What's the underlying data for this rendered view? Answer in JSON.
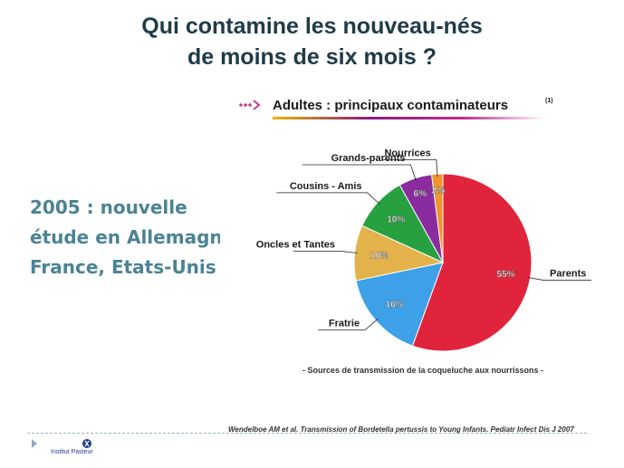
{
  "slide": {
    "title_line1": "Qui contamine les nouveau-nés",
    "title_line2": "de moins de six mois ?",
    "left_text": [
      "2005 : nouvelle",
      "étude en Allemagne",
      "France, Etats-Unis"
    ],
    "citation": "Wendelboe AM et al. Transmission of Bordetella pertussis to Young Infants. Pediatr Infect Dis J 2007",
    "logo_text": "Institut Pasteur",
    "logo_icon": "pasteur-logo-icon"
  },
  "colors": {
    "title": "#1f3b48",
    "left_text": "#4a8394",
    "slices": [
      "#e0243c",
      "#3da0e8",
      "#e3b24a",
      "#27a040",
      "#8a2ca0",
      "#f0942c"
    ]
  },
  "chart_data": {
    "type": "pie",
    "title": "Adultes : principaux contaminateurs",
    "title_note": "(1)",
    "caption": "- Sources de transmission de la coqueluche aux nourrissons -",
    "slices": [
      {
        "label": "Parents",
        "value": 55,
        "value_label": "55%"
      },
      {
        "label": "Fratrie",
        "value": 16,
        "value_label": "16%"
      },
      {
        "label": "Oncles et Tantes",
        "value": 10,
        "value_label": "10%"
      },
      {
        "label": "Cousins - Amis",
        "value": 10,
        "value_label": "10%"
      },
      {
        "label": "Grands-parents",
        "value": 6,
        "value_label": "6%"
      },
      {
        "label": "Nourrices",
        "value": 2,
        "value_label": "2%"
      }
    ]
  }
}
